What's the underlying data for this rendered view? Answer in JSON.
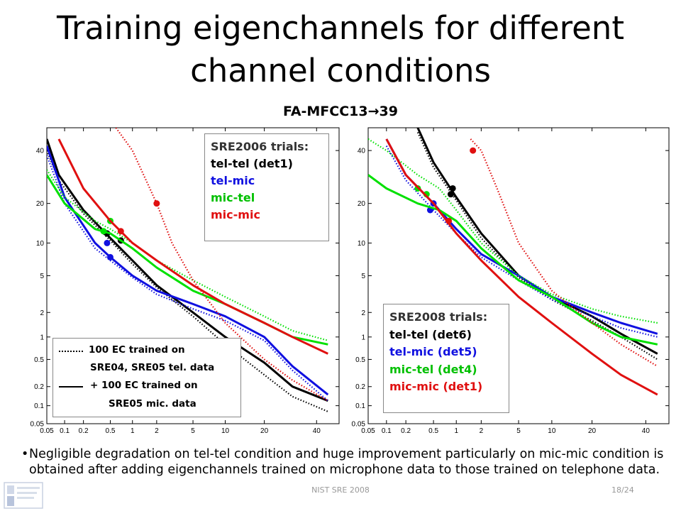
{
  "slide": {
    "title": "Training eigenchannels for different channel conditions",
    "subtitle": "FA-MFCC13→39",
    "footnote": "Negligible degradation on tel-tel condition and huge improvement particularly on mic-mic condition is obtained after adding eigenchannels trained on microphone data to those trained on telephone data.",
    "bullet": "•",
    "footer_center": "NIST SRE 2008",
    "page_number": "18/24",
    "logo_icon": "university-logo-icon"
  },
  "style_legend": {
    "dotted_label_1": "100 EC trained on",
    "dotted_label_2": "SRE04, SRE05 tel. data",
    "solid_label_1": "+ 100 EC trained on",
    "solid_label_2": "SRE05 mic. data"
  },
  "colors": {
    "tel-tel": "#000000",
    "tel-mic": "#1010e0",
    "mic-tel": "#00e000",
    "mic-mic": "#e01010"
  },
  "chart_data": [
    {
      "type": "line",
      "scale": "probit",
      "xlim": [
        0.05,
        50
      ],
      "ylim": [
        0.05,
        50
      ],
      "ticks": [
        0.05,
        0.1,
        0.2,
        0.5,
        1,
        2,
        5,
        10,
        20,
        40
      ],
      "tick_labels": [
        "0.05",
        "0.1",
        "0.2",
        "0.5",
        "1",
        "2",
        "5",
        "10",
        "20",
        "40"
      ],
      "grid": false,
      "legend_title": "SRE2006 trials:",
      "legend_position": "top-right",
      "series": [
        {
          "name": "tel-tel (det1)",
          "color": "#000000",
          "solid_points": [
            [
              0.05,
              45
            ],
            [
              0.08,
              30
            ],
            [
              0.2,
              18
            ],
            [
              0.5,
              11
            ],
            [
              1,
              7
            ],
            [
              2,
              4
            ],
            [
              5,
              2
            ],
            [
              10,
              1
            ],
            [
              20,
              0.45
            ],
            [
              30,
              0.2
            ],
            [
              45,
              0.12
            ]
          ],
          "dotted_points": [
            [
              0.05,
              40
            ],
            [
              0.08,
              28
            ],
            [
              0.2,
              17
            ],
            [
              0.5,
              10.5
            ],
            [
              1,
              6.5
            ],
            [
              2,
              3.8
            ],
            [
              5,
              1.8
            ],
            [
              10,
              0.8
            ],
            [
              20,
              0.3
            ],
            [
              30,
              0.14
            ],
            [
              45,
              0.08
            ]
          ],
          "solid_marker": [
            0.7,
            10.5
          ],
          "dotted_marker": [
            0.45,
            12
          ]
        },
        {
          "name": "tel-mic",
          "color": "#1010e0",
          "solid_points": [
            [
              0.05,
              42
            ],
            [
              0.1,
              22
            ],
            [
              0.3,
              10
            ],
            [
              0.5,
              7.5
            ],
            [
              1,
              5
            ],
            [
              2,
              3.5
            ],
            [
              5,
              2.5
            ],
            [
              10,
              1.8
            ],
            [
              20,
              1
            ],
            [
              30,
              0.4
            ],
            [
              45,
              0.15
            ]
          ],
          "dotted_points": [
            [
              0.05,
              38
            ],
            [
              0.1,
              20
            ],
            [
              0.3,
              9
            ],
            [
              0.5,
              7
            ],
            [
              1,
              4.8
            ],
            [
              2,
              3.2
            ],
            [
              5,
              2.2
            ],
            [
              10,
              1.6
            ],
            [
              20,
              0.9
            ],
            [
              30,
              0.35
            ],
            [
              45,
              0.12
            ]
          ],
          "solid_marker": [
            0.5,
            7.5
          ],
          "dotted_marker": [
            0.45,
            10
          ]
        },
        {
          "name": "mic-tel",
          "color": "#00e000",
          "solid_points": [
            [
              0.05,
              30
            ],
            [
              0.1,
              20
            ],
            [
              0.3,
              13
            ],
            [
              0.5,
              12
            ],
            [
              1,
              9
            ],
            [
              2,
              6
            ],
            [
              5,
              3.5
            ],
            [
              10,
              2.5
            ],
            [
              20,
              1.5
            ],
            [
              30,
              1
            ],
            [
              45,
              0.8
            ]
          ],
          "dotted_points": [
            [
              0.05,
              32
            ],
            [
              0.1,
              22
            ],
            [
              0.3,
              15
            ],
            [
              0.5,
              13
            ],
            [
              1,
              10
            ],
            [
              2,
              7
            ],
            [
              5,
              4.5
            ],
            [
              10,
              3
            ],
            [
              20,
              1.8
            ],
            [
              30,
              1.2
            ],
            [
              45,
              0.9
            ]
          ],
          "solid_marker": [
            0.4,
            12.5
          ],
          "dotted_marker": [
            0.5,
            15
          ]
        },
        {
          "name": "mic-mic",
          "color": "#e01010",
          "solid_points": [
            [
              0.08,
              45
            ],
            [
              0.2,
              25
            ],
            [
              0.5,
              15
            ],
            [
              1,
              10
            ],
            [
              2,
              7
            ],
            [
              5,
              4
            ],
            [
              10,
              2.5
            ],
            [
              20,
              1.5
            ],
            [
              30,
              1
            ],
            [
              45,
              0.6
            ]
          ],
          "dotted_points": [
            [
              0.6,
              50
            ],
            [
              1,
              40
            ],
            [
              2,
              20
            ],
            [
              3,
              10
            ],
            [
              5,
              4.5
            ],
            [
              10,
              1.5
            ],
            [
              20,
              0.5
            ],
            [
              30,
              0.25
            ],
            [
              45,
              0.12
            ]
          ],
          "solid_marker": [
            0.7,
            12.5
          ],
          "dotted_marker": [
            2,
            20
          ]
        }
      ]
    },
    {
      "type": "line",
      "scale": "probit",
      "xlim": [
        0.05,
        50
      ],
      "ylim": [
        0.05,
        50
      ],
      "ticks": [
        0.05,
        0.1,
        0.2,
        0.5,
        1,
        2,
        5,
        10,
        20,
        40
      ],
      "tick_labels": [
        "0.05",
        "0.1",
        "0.2",
        "0.5",
        "1",
        "2",
        "5",
        "10",
        "20",
        "40"
      ],
      "grid": false,
      "legend_title": "SRE2008 trials:",
      "legend_position": "bottom-right",
      "series": [
        {
          "name": "tel-tel (det6)",
          "color": "#000000",
          "solid_points": [
            [
              0.3,
              50
            ],
            [
              0.5,
              35
            ],
            [
              1,
              22
            ],
            [
              2,
              12
            ],
            [
              5,
              5
            ],
            [
              10,
              3
            ],
            [
              20,
              1.8
            ],
            [
              30,
              1.1
            ],
            [
              45,
              0.6
            ]
          ],
          "dotted_points": [
            [
              0.3,
              48
            ],
            [
              0.5,
              33
            ],
            [
              1,
              21
            ],
            [
              2,
              11
            ],
            [
              5,
              4.8
            ],
            [
              10,
              2.8
            ],
            [
              20,
              1.6
            ],
            [
              30,
              1
            ],
            [
              45,
              0.5
            ]
          ],
          "solid_marker": [
            0.9,
            25
          ],
          "dotted_marker": [
            0.85,
            23
          ]
        },
        {
          "name": "tel-mic (det5)",
          "color": "#1010e0",
          "solid_points": [
            [
              0.1,
              45
            ],
            [
              0.2,
              30
            ],
            [
              0.5,
              20
            ],
            [
              1,
              13
            ],
            [
              2,
              8
            ],
            [
              5,
              5
            ],
            [
              10,
              3
            ],
            [
              20,
              2
            ],
            [
              30,
              1.5
            ],
            [
              45,
              1.1
            ]
          ],
          "dotted_points": [
            [
              0.1,
              42
            ],
            [
              0.2,
              28
            ],
            [
              0.5,
              18
            ],
            [
              1,
              12
            ],
            [
              2,
              7.5
            ],
            [
              5,
              4.5
            ],
            [
              10,
              2.8
            ],
            [
              20,
              1.8
            ],
            [
              30,
              1.3
            ],
            [
              45,
              1
            ]
          ],
          "solid_marker": [
            0.5,
            20
          ],
          "dotted_marker": [
            0.45,
            18
          ]
        },
        {
          "name": "mic-tel (det4)",
          "color": "#00e000",
          "solid_points": [
            [
              0.05,
              30
            ],
            [
              0.1,
              25
            ],
            [
              0.3,
              20
            ],
            [
              0.6,
              18
            ],
            [
              1,
              15
            ],
            [
              2,
              9
            ],
            [
              5,
              4.5
            ],
            [
              10,
              3
            ],
            [
              20,
              1.5
            ],
            [
              30,
              1
            ],
            [
              45,
              0.8
            ]
          ],
          "dotted_points": [
            [
              0.05,
              45
            ],
            [
              0.1,
              40
            ],
            [
              0.3,
              30
            ],
            [
              0.6,
              25
            ],
            [
              1,
              18
            ],
            [
              2,
              10
            ],
            [
              5,
              5
            ],
            [
              10,
              3.2
            ],
            [
              20,
              2.2
            ],
            [
              30,
              1.8
            ],
            [
              45,
              1.5
            ]
          ],
          "solid_marker": [
            0.3,
            25
          ],
          "dotted_marker": [
            0.4,
            23
          ]
        },
        {
          "name": "mic-mic (det1)",
          "color": "#e01010",
          "solid_points": [
            [
              0.1,
              45
            ],
            [
              0.2,
              30
            ],
            [
              0.5,
              20
            ],
            [
              1,
              12
            ],
            [
              2,
              7
            ],
            [
              5,
              3
            ],
            [
              10,
              1.5
            ],
            [
              20,
              0.6
            ],
            [
              30,
              0.3
            ],
            [
              45,
              0.15
            ]
          ],
          "dotted_points": [
            [
              1.5,
              45
            ],
            [
              2,
              40
            ],
            [
              3,
              25
            ],
            [
              5,
              10
            ],
            [
              10,
              3.5
            ],
            [
              20,
              1.5
            ],
            [
              30,
              0.8
            ],
            [
              45,
              0.4
            ]
          ],
          "solid_marker": [
            0.8,
            15
          ],
          "dotted_marker": [
            1.6,
            40
          ]
        }
      ]
    }
  ]
}
